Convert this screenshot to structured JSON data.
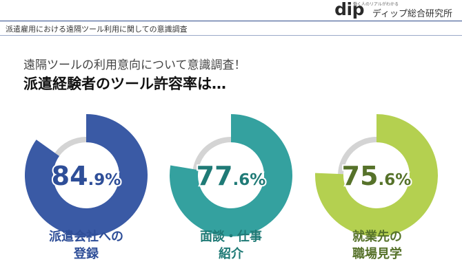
{
  "header": {
    "logo_text": "dip",
    "logo_tagline": "働く人のリアルがわかる",
    "logo_name": "ディップ総合研究所"
  },
  "subject": "派遣雇用における遠隔ツール利用に関しての意識調査",
  "headline": "遠隔ツールの利用意向について意識調査！",
  "subheadline": "派遣経験者のツール許容率は…",
  "colors": {
    "remainder": "#d4d4d4",
    "navy": "#3a5aa5",
    "teal": "#34a19f",
    "lime": "#b4d050"
  },
  "chart_data": [
    {
      "type": "pie",
      "style": "donut",
      "value": 84.9,
      "value_int": "84",
      "value_dec": ".9%",
      "label_lines": [
        "派遣会社への",
        "登録"
      ],
      "color": "#3a5aa5",
      "text_color": "#2e4e98"
    },
    {
      "type": "pie",
      "style": "donut",
      "value": 77.6,
      "value_int": "77",
      "value_dec": ".6%",
      "label_lines": [
        "面談・仕事",
        "紹介"
      ],
      "color": "#34a19f",
      "text_color": "#1f7a76"
    },
    {
      "type": "pie",
      "style": "donut",
      "value": 75.6,
      "value_int": "75",
      "value_dec": ".6%",
      "label_lines": [
        "就業先の",
        "職場見学"
      ],
      "color": "#b4d050",
      "text_color": "#56722a"
    }
  ]
}
